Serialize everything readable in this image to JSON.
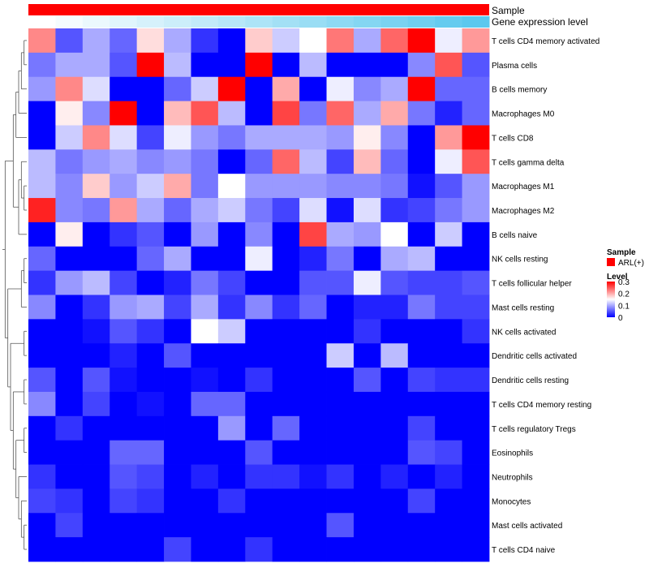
{
  "chart_data": {
    "type": "heatmap",
    "annotations": {
      "sample_track_label": "Sample",
      "expression_track_label": "Gene expression level",
      "sample_color": "#ff0000",
      "expression_low_color": "#ffffff",
      "expression_high_color": "#5bc8ee"
    },
    "rows": [
      "T cells CD4 memory activated",
      "Plasma cells",
      "B cells memory",
      "Macrophages M0",
      "T cells CD8",
      "T cells gamma delta",
      "Macrophages M1",
      "Macrophages M2",
      "B cells naive",
      "NK cells resting",
      "T cells follicular helper",
      "Mast cells resting",
      "NK cells activated",
      "Dendritic cells activated",
      "Dendritic cells resting",
      "T cells CD4 memory resting",
      "T cells regulatory  Tregs",
      "Eosinophils",
      "Neutrophils",
      "Monocytes",
      "Mast cells activated",
      "T cells CD4 naive"
    ],
    "column_count": 17,
    "values": [
      [
        0.22,
        0.05,
        0.1,
        0.06,
        0.17,
        0.1,
        0.03,
        0.0,
        0.18,
        0.12,
        0.15,
        0.23,
        0.1,
        0.24,
        0.3,
        0.14,
        0.21
      ],
      [
        0.07,
        0.1,
        0.1,
        0.05,
        0.3,
        0.11,
        0.0,
        0.0,
        0.3,
        0.0,
        0.11,
        0.0,
        0.0,
        0.0,
        0.08,
        0.25,
        0.05
      ],
      [
        0.09,
        0.22,
        0.13,
        0.0,
        0.0,
        0.06,
        0.12,
        0.3,
        0.0,
        0.2,
        0.0,
        0.14,
        0.08,
        0.1,
        0.3,
        0.06,
        0.06
      ],
      [
        0.0,
        0.16,
        0.08,
        0.3,
        0.0,
        0.19,
        0.25,
        0.11,
        0.0,
        0.26,
        0.07,
        0.24,
        0.1,
        0.2,
        0.07,
        0.02,
        0.06
      ],
      [
        0.0,
        0.12,
        0.22,
        0.13,
        0.04,
        0.14,
        0.09,
        0.07,
        0.1,
        0.1,
        0.1,
        0.09,
        0.16,
        0.08,
        0.0,
        0.21,
        0.3
      ],
      [
        0.11,
        0.07,
        0.09,
        0.1,
        0.08,
        0.09,
        0.07,
        0.0,
        0.06,
        0.24,
        0.11,
        0.04,
        0.19,
        0.06,
        0.0,
        0.14,
        0.25
      ],
      [
        0.11,
        0.08,
        0.18,
        0.09,
        0.12,
        0.2,
        0.07,
        0.15,
        0.09,
        0.09,
        0.09,
        0.08,
        0.08,
        0.07,
        0.01,
        0.05,
        0.09
      ],
      [
        0.28,
        0.08,
        0.07,
        0.21,
        0.1,
        0.06,
        0.1,
        0.12,
        0.07,
        0.04,
        0.13,
        0.01,
        0.13,
        0.03,
        0.04,
        0.07,
        0.09
      ],
      [
        0.0,
        0.16,
        0.0,
        0.03,
        0.05,
        0.0,
        0.09,
        0.0,
        0.08,
        0.0,
        0.26,
        0.1,
        0.09,
        0.15,
        0.0,
        0.12,
        0.0
      ],
      [
        0.06,
        0.0,
        0.0,
        0.0,
        0.06,
        0.1,
        0.0,
        0.0,
        0.14,
        0.0,
        0.02,
        0.07,
        0.0,
        0.1,
        0.11,
        0.0,
        0.0
      ],
      [
        0.03,
        0.09,
        0.11,
        0.04,
        0.0,
        0.02,
        0.07,
        0.04,
        0.0,
        0.0,
        0.05,
        0.05,
        0.14,
        0.05,
        0.04,
        0.04,
        0.05
      ],
      [
        0.08,
        0.0,
        0.03,
        0.09,
        0.1,
        0.04,
        0.1,
        0.03,
        0.08,
        0.03,
        0.06,
        0.0,
        0.02,
        0.02,
        0.07,
        0.04,
        0.04
      ],
      [
        0.0,
        0.0,
        0.01,
        0.05,
        0.03,
        0.0,
        0.15,
        0.12,
        0.0,
        0.0,
        0.0,
        0.0,
        0.03,
        0.0,
        0.0,
        0.0,
        0.03
      ],
      [
        0.0,
        0.0,
        0.0,
        0.02,
        0.0,
        0.05,
        0.0,
        0.0,
        0.0,
        0.0,
        0.0,
        0.12,
        0.0,
        0.11,
        0.0,
        0.0,
        0.0
      ],
      [
        0.05,
        0.0,
        0.05,
        0.01,
        0.0,
        0.0,
        0.01,
        0.0,
        0.03,
        0.0,
        0.0,
        0.0,
        0.05,
        0.0,
        0.04,
        0.03,
        0.03
      ],
      [
        0.08,
        0.0,
        0.04,
        0.0,
        0.01,
        0.0,
        0.06,
        0.06,
        0.0,
        0.0,
        0.0,
        0.0,
        0.0,
        0.0,
        0.0,
        0.0,
        0.0
      ],
      [
        0.0,
        0.03,
        0.0,
        0.0,
        0.0,
        0.0,
        0.0,
        0.09,
        0.0,
        0.06,
        0.0,
        0.0,
        0.0,
        0.0,
        0.04,
        0.0,
        0.0
      ],
      [
        0.0,
        0.0,
        0.0,
        0.06,
        0.06,
        0.0,
        0.0,
        0.0,
        0.05,
        0.0,
        0.0,
        0.0,
        0.0,
        0.0,
        0.05,
        0.04,
        0.0
      ],
      [
        0.03,
        0.0,
        0.0,
        0.05,
        0.04,
        0.0,
        0.02,
        0.0,
        0.03,
        0.03,
        0.01,
        0.03,
        0.0,
        0.02,
        0.0,
        0.02,
        0.0
      ],
      [
        0.04,
        0.03,
        0.0,
        0.04,
        0.03,
        0.0,
        0.0,
        0.03,
        0.0,
        0.0,
        0.0,
        0.0,
        0.0,
        0.0,
        0.04,
        0.0,
        0.0
      ],
      [
        0.0,
        0.04,
        0.0,
        0.0,
        0.0,
        0.0,
        0.0,
        0.0,
        0.0,
        0.0,
        0.0,
        0.05,
        0.0,
        0.0,
        0.0,
        0.0,
        0.0
      ],
      [
        0.0,
        0.0,
        0.0,
        0.0,
        0.0,
        0.04,
        0.0,
        0.0,
        0.03,
        0.0,
        0.0,
        0.0,
        0.0,
        0.0,
        0.0,
        0.0,
        0.0
      ]
    ],
    "legend": {
      "sample_title": "Sample",
      "sample_entry": "ARL(+)",
      "level_title": "Level",
      "level_ticks": [
        0.3,
        0.2,
        0.1,
        0
      ],
      "tick_labels": [
        "0.3",
        "0.2",
        "0.1",
        "0"
      ],
      "range": [
        0,
        0.3
      ],
      "low_color": "#0000ff",
      "mid_color": "#ffffff",
      "high_color": "#ff0000"
    }
  }
}
